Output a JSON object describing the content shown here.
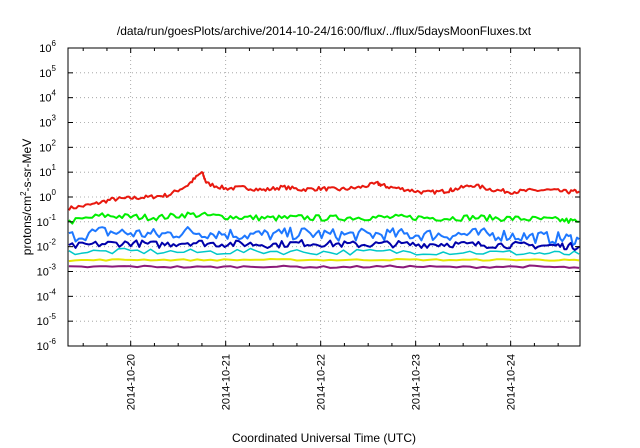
{
  "chart_data": {
    "type": "line",
    "title": "/data/run/goesPlots/archive/2014-10-24/16:00/flux/../flux/5daysMoonFluxes.txt",
    "xlabel": "Coordinated Universal Time (UTC)",
    "ylabel": {
      "base": "protons/cm",
      "sup": "2",
      "rest": "-s-sr-MeV"
    },
    "yscale": "log",
    "ylim_exp": [
      -6,
      6
    ],
    "yticks": [
      {
        "exp": "-6"
      },
      {
        "exp": "-5"
      },
      {
        "exp": "-4"
      },
      {
        "exp": "-3"
      },
      {
        "exp": "-2"
      },
      {
        "exp": "-1"
      },
      {
        "exp": "0"
      },
      {
        "exp": "1"
      },
      {
        "exp": "2"
      },
      {
        "exp": "3"
      },
      {
        "exp": "4"
      },
      {
        "exp": "5"
      },
      {
        "exp": "6"
      }
    ],
    "x_date_ticks": [
      "2014-10-20",
      "2014-10-21",
      "2014-10-22",
      "2014-10-23",
      "2014-10-24"
    ],
    "x_range_days": [
      -0.66,
      4.73
    ],
    "grid": true,
    "legend": "none",
    "series": [
      {
        "color": "#e8190f",
        "width": 2,
        "x": [
          -0.65,
          -0.4,
          -0.2,
          0.0,
          0.2,
          0.4,
          0.6,
          0.75,
          0.8,
          1.0,
          1.2,
          1.4,
          1.6,
          1.8,
          2.0,
          2.2,
          2.4,
          2.6,
          2.7,
          2.9,
          3.1,
          3.3,
          3.4,
          3.6,
          3.8,
          4.0,
          4.2,
          4.4,
          4.6,
          4.72
        ],
        "y": [
          0.35,
          0.5,
          0.8,
          0.9,
          1.0,
          1.2,
          3,
          10,
          3.5,
          2.2,
          2.4,
          1.9,
          2.5,
          2.0,
          2.2,
          2.0,
          2.4,
          3.5,
          2.6,
          2.0,
          1.5,
          1.7,
          2.0,
          3.0,
          2.0,
          1.6,
          1.8,
          1.9,
          1.6,
          1.7
        ]
      },
      {
        "color": "#00ee00",
        "width": 2,
        "x": [
          -0.65,
          -0.3,
          0.0,
          0.3,
          0.6,
          0.9,
          1.2,
          1.5,
          1.8,
          2.1,
          2.4,
          2.7,
          3.0,
          3.3,
          3.6,
          3.9,
          4.2,
          4.5,
          4.72
        ],
        "y": [
          0.1,
          0.18,
          0.16,
          0.15,
          0.2,
          0.17,
          0.15,
          0.14,
          0.15,
          0.14,
          0.15,
          0.15,
          0.15,
          0.14,
          0.15,
          0.14,
          0.13,
          0.12,
          0.1
        ]
      },
      {
        "color": "#1e78ff",
        "width": 2,
        "x": [
          -0.65,
          -0.3,
          0.0,
          0.3,
          0.6,
          0.9,
          1.2,
          1.5,
          1.8,
          2.1,
          2.4,
          2.7,
          3.0,
          3.3,
          3.6,
          3.9,
          4.2,
          4.5,
          4.72
        ],
        "y": [
          0.025,
          0.04,
          0.035,
          0.03,
          0.04,
          0.035,
          0.03,
          0.03,
          0.035,
          0.03,
          0.03,
          0.032,
          0.03,
          0.03,
          0.032,
          0.03,
          0.025,
          0.022,
          0.02
        ]
      },
      {
        "color": "#00c8c8",
        "width": 1.5,
        "x": [
          -0.65,
          0.0,
          0.7,
          1.4,
          2.1,
          2.8,
          3.5,
          4.2,
          4.72
        ],
        "y": [
          0.006,
          0.0065,
          0.006,
          0.0065,
          0.006,
          0.0062,
          0.006,
          0.0055,
          0.005
        ]
      },
      {
        "color": "#0000aa",
        "width": 2,
        "x": [
          -0.65,
          -0.3,
          0.0,
          0.3,
          0.6,
          0.9,
          1.2,
          1.5,
          1.8,
          2.1,
          2.4,
          2.7,
          3.0,
          3.3,
          3.6,
          3.9,
          4.2,
          4.5,
          4.72
        ],
        "y": [
          0.01,
          0.013,
          0.014,
          0.012,
          0.015,
          0.013,
          0.013,
          0.012,
          0.014,
          0.013,
          0.012,
          0.013,
          0.012,
          0.013,
          0.012,
          0.012,
          0.011,
          0.011,
          0.01
        ]
      },
      {
        "color": "#e6e600",
        "width": 2,
        "x": [
          -0.65,
          0.0,
          0.7,
          1.4,
          2.1,
          2.8,
          3.5,
          4.2,
          4.72
        ],
        "y": [
          0.0028,
          0.003,
          0.0029,
          0.003,
          0.0029,
          0.003,
          0.0029,
          0.003,
          0.0028
        ]
      },
      {
        "color": "#8b1a7a",
        "width": 2,
        "x": [
          -0.65,
          0.0,
          0.7,
          1.4,
          2.1,
          2.8,
          3.5,
          4.2,
          4.72
        ],
        "y": [
          0.0015,
          0.0016,
          0.0015,
          0.0016,
          0.0015,
          0.0016,
          0.0015,
          0.0016,
          0.0014
        ]
      }
    ]
  }
}
